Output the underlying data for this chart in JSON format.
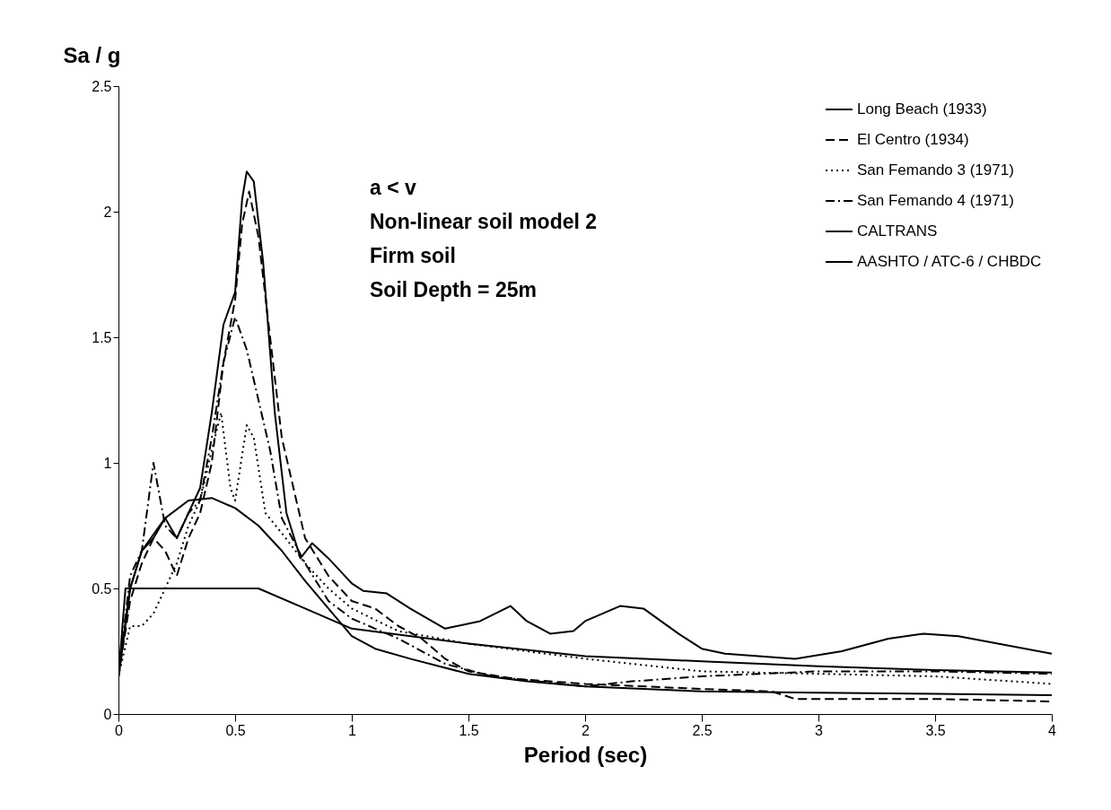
{
  "chart_data": {
    "type": "line",
    "xlabel": "Period (sec)",
    "ylabel": "Sa / g",
    "annotations": [
      "a < v",
      "Non-linear soil model 2",
      "Firm soil",
      "Soil Depth = 25m"
    ],
    "xlim": [
      0,
      4
    ],
    "xticks": [
      0,
      0.5,
      1,
      1.5,
      2,
      2.5,
      3,
      3.5,
      4
    ],
    "ylim": [
      0,
      2.5
    ],
    "yticks": [
      0,
      0.5,
      1,
      1.5,
      2,
      2.5
    ],
    "grid": false,
    "legend": "top right",
    "marker": "none",
    "series": [
      {
        "name": "Long Beach (1933)",
        "color": "#000000",
        "line_style": "solid",
        "x": [
          0,
          0.05,
          0.1,
          0.15,
          0.2,
          0.25,
          0.3,
          0.35,
          0.4,
          0.45,
          0.5,
          0.53,
          0.55,
          0.58,
          0.62,
          0.67,
          0.72,
          0.78,
          0.83,
          0.9,
          1.0,
          1.05,
          1.15,
          1.25,
          1.4,
          1.55,
          1.68,
          1.75,
          1.85,
          1.95,
          2.0,
          2.15,
          2.25,
          2.4,
          2.5,
          2.6,
          2.9,
          3.1,
          3.3,
          3.45,
          3.6,
          4
        ],
        "values": [
          0.15,
          0.5,
          0.65,
          0.7,
          0.78,
          0.7,
          0.8,
          0.9,
          1.2,
          1.55,
          1.68,
          2.05,
          2.16,
          2.12,
          1.8,
          1.2,
          0.8,
          0.62,
          0.68,
          0.62,
          0.52,
          0.49,
          0.48,
          0.42,
          0.34,
          0.37,
          0.43,
          0.37,
          0.32,
          0.33,
          0.37,
          0.43,
          0.42,
          0.32,
          0.26,
          0.24,
          0.22,
          0.25,
          0.3,
          0.32,
          0.31,
          0.24
        ]
      },
      {
        "name": "El Centro (1934)",
        "color": "#000000",
        "line_style": "dashed",
        "x": [
          0,
          0.05,
          0.1,
          0.15,
          0.2,
          0.25,
          0.3,
          0.35,
          0.4,
          0.45,
          0.5,
          0.53,
          0.56,
          0.6,
          0.65,
          0.7,
          0.75,
          0.8,
          0.9,
          1.0,
          1.1,
          1.2,
          1.3,
          1.4,
          1.5,
          1.7,
          2.0,
          2.5,
          2.8,
          2.9,
          3.5,
          4
        ],
        "values": [
          0.15,
          0.45,
          0.6,
          0.7,
          0.65,
          0.55,
          0.7,
          0.8,
          1.0,
          1.4,
          1.65,
          1.95,
          2.08,
          1.9,
          1.5,
          1.1,
          0.9,
          0.7,
          0.55,
          0.45,
          0.42,
          0.35,
          0.3,
          0.22,
          0.17,
          0.14,
          0.12,
          0.1,
          0.09,
          0.06,
          0.06,
          0.05
        ]
      },
      {
        "name": "San Femando 3 (1971)",
        "color": "#000000",
        "line_style": "dotted",
        "x": [
          0,
          0.05,
          0.1,
          0.15,
          0.2,
          0.25,
          0.3,
          0.35,
          0.4,
          0.44,
          0.48,
          0.5,
          0.55,
          0.58,
          0.63,
          0.7,
          0.8,
          0.9,
          1.0,
          1.2,
          1.5,
          2.0,
          2.5,
          3,
          3.5,
          4
        ],
        "values": [
          0.15,
          0.35,
          0.35,
          0.4,
          0.5,
          0.6,
          0.75,
          0.85,
          1.05,
          1.2,
          0.9,
          0.85,
          1.15,
          1.1,
          0.8,
          0.72,
          0.6,
          0.5,
          0.42,
          0.33,
          0.28,
          0.22,
          0.17,
          0.16,
          0.15,
          0.12
        ]
      },
      {
        "name": "San Femando 4 (1971)",
        "color": "#000000",
        "line_style": "dashdot",
        "x": [
          0,
          0.05,
          0.1,
          0.15,
          0.2,
          0.25,
          0.3,
          0.35,
          0.4,
          0.45,
          0.5,
          0.55,
          0.6,
          0.65,
          0.7,
          0.8,
          0.9,
          1.0,
          1.1,
          1.2,
          1.4,
          1.6,
          1.9,
          2.0,
          2.2,
          2.5,
          3,
          3.5,
          4
        ],
        "values": [
          0.15,
          0.55,
          0.65,
          1.0,
          0.75,
          0.7,
          0.8,
          0.85,
          1.1,
          1.4,
          1.58,
          1.45,
          1.25,
          1.05,
          0.78,
          0.6,
          0.45,
          0.38,
          0.34,
          0.3,
          0.2,
          0.15,
          0.12,
          0.11,
          0.13,
          0.15,
          0.17,
          0.17,
          0.16
        ]
      },
      {
        "name": "CALTRANS",
        "color": "#000000",
        "line_style": "solid",
        "x": [
          0,
          0.05,
          0.1,
          0.2,
          0.3,
          0.4,
          0.5,
          0.6,
          0.7,
          0.8,
          0.9,
          1.0,
          1.1,
          1.25,
          1.5,
          1.75,
          2,
          2.5,
          3,
          3.5,
          4
        ],
        "values": [
          0.15,
          0.5,
          0.65,
          0.78,
          0.85,
          0.86,
          0.82,
          0.75,
          0.65,
          0.53,
          0.42,
          0.31,
          0.26,
          0.22,
          0.16,
          0.13,
          0.11,
          0.09,
          0.085,
          0.08,
          0.075
        ]
      },
      {
        "name": "AASHTO / ATC-6 / CHBDC",
        "color": "#000000",
        "line_style": "solid",
        "x": [
          0,
          0.03,
          0.6,
          0.8,
          1.0,
          1.5,
          2,
          2.5,
          3,
          3.5,
          4
        ],
        "values": [
          0.15,
          0.5,
          0.5,
          0.42,
          0.34,
          0.28,
          0.23,
          0.21,
          0.19,
          0.175,
          0.165
        ]
      }
    ]
  }
}
